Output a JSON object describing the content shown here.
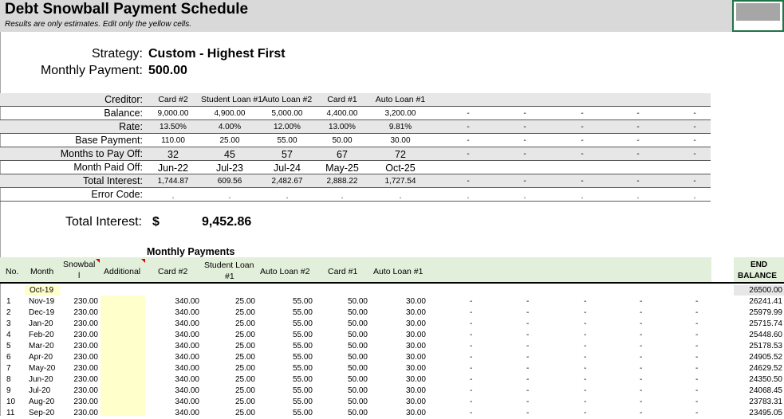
{
  "sheet": {
    "title": "Debt Snowball Payment Schedule",
    "subtitle": "Results are only estimates. Edit only the yellow cells."
  },
  "strategy": {
    "strategy_label": "Strategy:",
    "strategy_value": "Custom - Highest First",
    "monthly_label": "Monthly Payment:",
    "monthly_value": "500.00"
  },
  "summary": {
    "creditor_label": "Creditor:",
    "creditors": [
      "Card #2",
      "Student Loan #1",
      "Auto Loan #2",
      "Card #1",
      "Auto Loan #1"
    ],
    "rows": [
      {
        "label": "Balance:",
        "values": [
          "9,000.00",
          "4,900.00",
          "5,000.00",
          "4,400.00",
          "3,200.00"
        ],
        "dashes": [
          "-",
          "-",
          "-",
          "-",
          "-"
        ]
      },
      {
        "label": "Rate:",
        "values": [
          "13.50%",
          "4.00%",
          "12.00%",
          "13.00%",
          "9.81%"
        ],
        "dashes": [
          "-",
          "-",
          "-",
          "-",
          "-"
        ]
      },
      {
        "label": "Base Payment:",
        "values": [
          "110.00",
          "25.00",
          "55.00",
          "50.00",
          "30.00"
        ],
        "dashes": [
          "-",
          "-",
          "-",
          "-",
          "-"
        ]
      },
      {
        "label": "Months to Pay Off:",
        "values": [
          "32",
          "45",
          "57",
          "67",
          "72"
        ],
        "dashes": [
          "-",
          "-",
          "-",
          "-",
          "-"
        ]
      },
      {
        "label": "Month Paid Off:",
        "values": [
          "Jun-22",
          "Jul-23",
          "Jul-24",
          "May-25",
          "Oct-25"
        ],
        "dashes": [
          "",
          "",
          "",
          "",
          ""
        ]
      },
      {
        "label": "Total Interest:",
        "values": [
          "1,744.87",
          "609.56",
          "2,482.67",
          "2,888.22",
          "1,727.54"
        ],
        "dashes": [
          "-",
          "-",
          "-",
          "-",
          "-"
        ]
      },
      {
        "label": "Error Code:",
        "values": [
          ".",
          ".",
          ".",
          ".",
          "."
        ],
        "dashes": [
          ".",
          ".",
          ".",
          ".",
          "."
        ]
      }
    ]
  },
  "total_interest": {
    "label": "Total Interest:",
    "currency": "$",
    "value": "9,452.86"
  },
  "schedule": {
    "title": "Monthly Payments",
    "headers": {
      "no": "No.",
      "month": "Month",
      "snowball_1": "Snowbal",
      "snowball_2": "l",
      "additional": "Additional",
      "card2": "Card #2",
      "student_1": "Student Loan",
      "student_2": "#1",
      "auto2": "Auto Loan #2",
      "card1": "Card #1",
      "auto1": "Auto Loan #1",
      "end_1": "END",
      "end_2": "BALANCE"
    },
    "start_month": "Oct-19",
    "start_balance": "26500.00",
    "rows": [
      {
        "no": "1",
        "month": "Nov-19",
        "snowball": "230.00",
        "card2": "340.00",
        "student": "25.00",
        "auto2": "55.00",
        "card1": "50.00",
        "auto1": "30.00",
        "dashes": [
          "-",
          "-",
          "-",
          "-",
          "-"
        ],
        "end": "26241.41"
      },
      {
        "no": "2",
        "month": "Dec-19",
        "snowball": "230.00",
        "card2": "340.00",
        "student": "25.00",
        "auto2": "55.00",
        "card1": "50.00",
        "auto1": "30.00",
        "dashes": [
          "-",
          "-",
          "-",
          "-",
          "-"
        ],
        "end": "25979.99"
      },
      {
        "no": "3",
        "month": "Jan-20",
        "snowball": "230.00",
        "card2": "340.00",
        "student": "25.00",
        "auto2": "55.00",
        "card1": "50.00",
        "auto1": "30.00",
        "dashes": [
          "-",
          "-",
          "-",
          "-",
          "-"
        ],
        "end": "25715.74"
      },
      {
        "no": "4",
        "month": "Feb-20",
        "snowball": "230.00",
        "card2": "340.00",
        "student": "25.00",
        "auto2": "55.00",
        "card1": "50.00",
        "auto1": "30.00",
        "dashes": [
          "-",
          "-",
          "-",
          "-",
          "-"
        ],
        "end": "25448.60"
      },
      {
        "no": "5",
        "month": "Mar-20",
        "snowball": "230.00",
        "card2": "340.00",
        "student": "25.00",
        "auto2": "55.00",
        "card1": "50.00",
        "auto1": "30.00",
        "dashes": [
          "-",
          "-",
          "-",
          "-",
          "-"
        ],
        "end": "25178.53"
      },
      {
        "no": "6",
        "month": "Apr-20",
        "snowball": "230.00",
        "card2": "340.00",
        "student": "25.00",
        "auto2": "55.00",
        "card1": "50.00",
        "auto1": "30.00",
        "dashes": [
          "-",
          "-",
          "-",
          "-",
          "-"
        ],
        "end": "24905.52"
      },
      {
        "no": "7",
        "month": "May-20",
        "snowball": "230.00",
        "card2": "340.00",
        "student": "25.00",
        "auto2": "55.00",
        "card1": "50.00",
        "auto1": "30.00",
        "dashes": [
          "-",
          "-",
          "-",
          "-",
          "-"
        ],
        "end": "24629.52"
      },
      {
        "no": "8",
        "month": "Jun-20",
        "snowball": "230.00",
        "card2": "340.00",
        "student": "25.00",
        "auto2": "55.00",
        "card1": "50.00",
        "auto1": "30.00",
        "dashes": [
          "-",
          "-",
          "-",
          "-",
          "-"
        ],
        "end": "24350.50"
      },
      {
        "no": "9",
        "month": "Jul-20",
        "snowball": "230.00",
        "card2": "340.00",
        "student": "25.00",
        "auto2": "55.00",
        "card1": "50.00",
        "auto1": "30.00",
        "dashes": [
          "-",
          "-",
          "-",
          "-",
          "-"
        ],
        "end": "24068.45"
      },
      {
        "no": "10",
        "month": "Aug-20",
        "snowball": "230.00",
        "card2": "340.00",
        "student": "25.00",
        "auto2": "55.00",
        "card1": "50.00",
        "auto1": "30.00",
        "dashes": [
          "-",
          "-",
          "-",
          "-",
          "-"
        ],
        "end": "23783.31"
      },
      {
        "no": "11",
        "month": "Sep-20",
        "snowball": "230.00",
        "card2": "340.00",
        "student": "25.00",
        "auto2": "55.00",
        "card1": "50.00",
        "auto1": "30.00",
        "dashes": [
          "-",
          "-",
          "-",
          "-",
          "-"
        ],
        "end": "23495.05"
      }
    ]
  }
}
